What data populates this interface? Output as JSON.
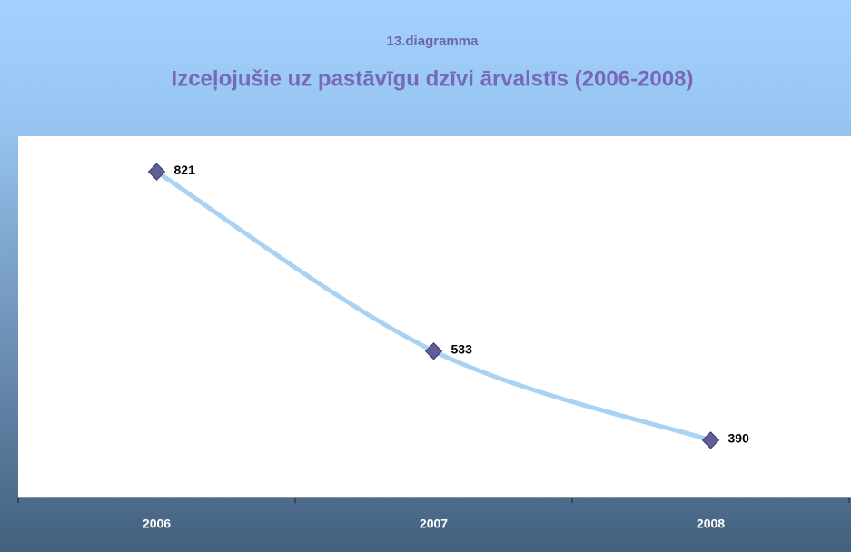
{
  "chart_data": {
    "type": "line",
    "subtitle": "13.diagramma",
    "title": "Izceļojušie uz pastāvīgu dzīvi ārvalstīs (2006-2008)",
    "categories": [
      "2006",
      "2007",
      "2008"
    ],
    "values": [
      821,
      533,
      390
    ],
    "color": "#a9d2f3",
    "marker_color": "#5f5f98",
    "ylim": [
      298,
      878
    ],
    "smooth": true
  }
}
